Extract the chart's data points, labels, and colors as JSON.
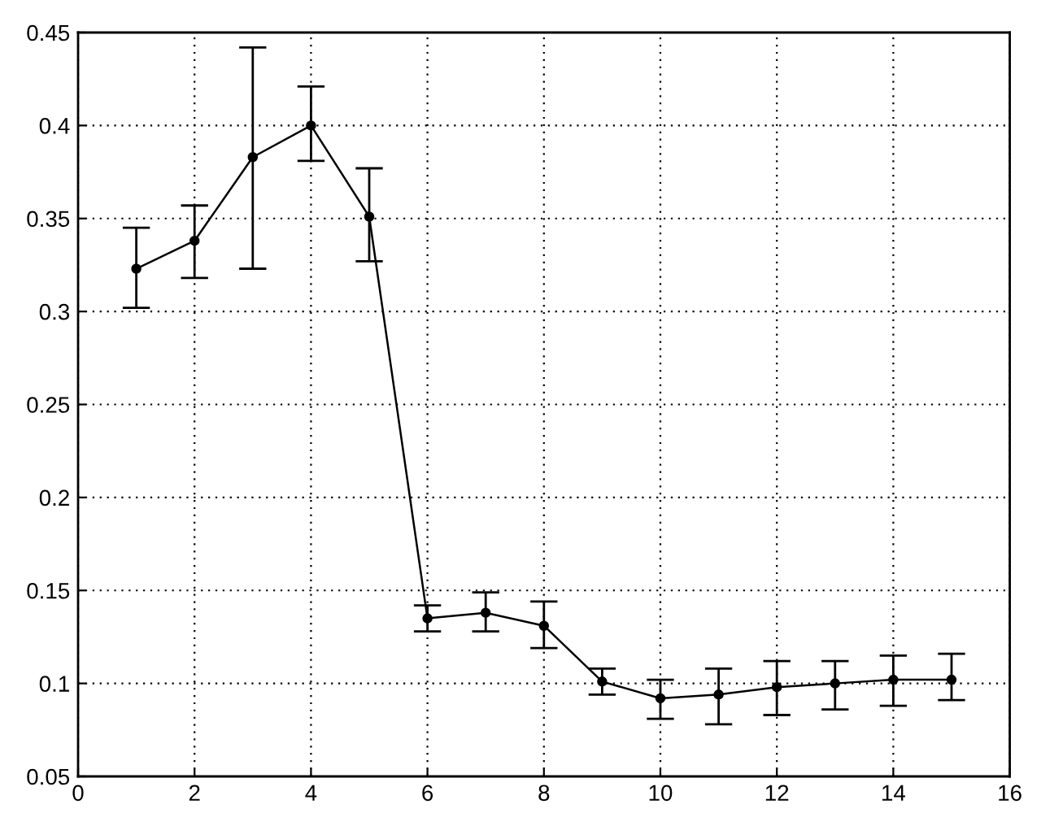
{
  "chart_data": {
    "type": "line",
    "x": [
      1,
      2,
      3,
      4,
      5,
      6,
      7,
      8,
      9,
      10,
      11,
      12,
      13,
      14,
      15
    ],
    "series": [
      {
        "color": "#000000",
        "values": [
          0.323,
          0.338,
          0.383,
          0.4,
          0.351,
          0.135,
          0.138,
          0.131,
          0.101,
          0.092,
          0.094,
          0.098,
          0.1,
          0.102,
          0.102
        ],
        "errors": [
          [
            0.302,
            0.345
          ],
          [
            0.318,
            0.357
          ],
          [
            0.323,
            0.442
          ],
          [
            0.381,
            0.421
          ],
          [
            0.327,
            0.377
          ],
          [
            0.128,
            0.142
          ],
          [
            0.128,
            0.149
          ],
          [
            0.119,
            0.144
          ],
          [
            0.094,
            0.108
          ],
          [
            0.081,
            0.102
          ],
          [
            0.078,
            0.108
          ],
          [
            0.083,
            0.112
          ],
          [
            0.086,
            0.112
          ],
          [
            0.088,
            0.115
          ],
          [
            0.091,
            0.116
          ]
        ]
      }
    ],
    "xlim": [
      0,
      16
    ],
    "xticks": [
      0,
      2,
      4,
      6,
      8,
      10,
      12,
      14,
      16
    ],
    "ylim": [
      0.05,
      0.45
    ],
    "yticks": [
      0.05,
      0.1,
      0.15,
      0.2,
      0.25,
      0.3,
      0.35,
      0.4,
      0.45
    ],
    "grid": true,
    "marker": "circle",
    "line_style": "solid"
  }
}
